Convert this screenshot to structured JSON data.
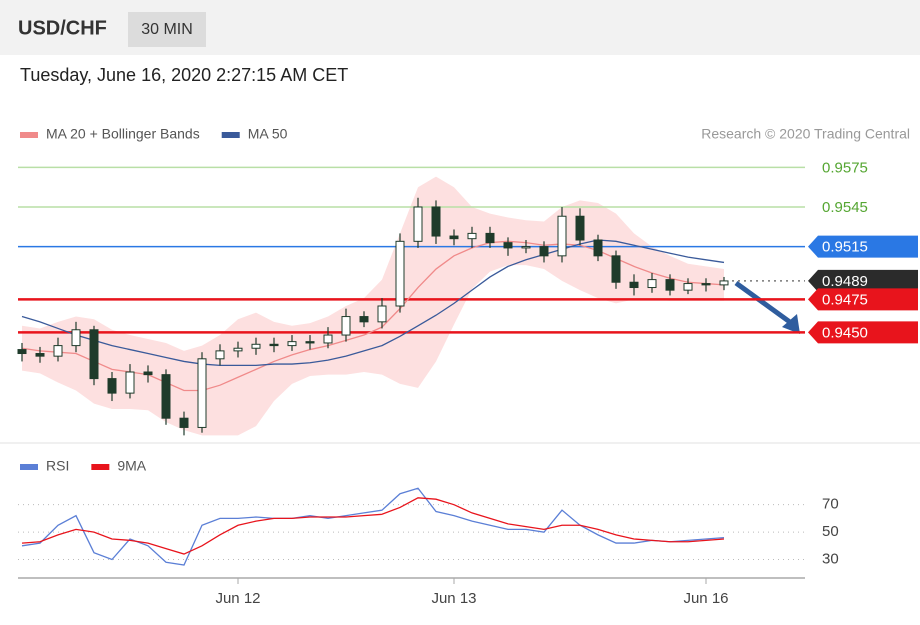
{
  "header": {
    "symbol": "USD/CHF",
    "timeframe": "30 MIN",
    "timestamp": "Tuesday, June 16, 2020 2:27:15 AM CET",
    "credit": "Research © 2020 Trading Central"
  },
  "chart_data": [
    {
      "type": "candlestick",
      "ylim": [
        0.937,
        0.959
      ],
      "candle_colors": {
        "up": "#ffffff",
        "down": "#1f3b2b",
        "outline": "#1f3b2b"
      },
      "open": [
        0.9437,
        0.9434,
        0.9432,
        0.944,
        0.9452,
        0.9415,
        0.9404,
        0.942,
        0.9418,
        0.9385,
        0.9378,
        0.943,
        0.9436,
        0.9438,
        0.9441,
        0.944,
        0.9443,
        0.9442,
        0.9448,
        0.9462,
        0.9458,
        0.947,
        0.9519,
        0.9545,
        0.9523,
        0.9521,
        0.9525,
        0.9518,
        0.9514,
        0.9515,
        0.9508,
        0.9538,
        0.952,
        0.9508,
        0.9488,
        0.9484,
        0.949,
        0.9482,
        0.9487,
        0.9486
      ],
      "high": [
        0.9442,
        0.9439,
        0.9446,
        0.9458,
        0.9455,
        0.942,
        0.9426,
        0.9425,
        0.9422,
        0.939,
        0.9435,
        0.9441,
        0.9443,
        0.9446,
        0.9446,
        0.9448,
        0.9448,
        0.9454,
        0.9468,
        0.9466,
        0.9476,
        0.9525,
        0.9552,
        0.955,
        0.9528,
        0.953,
        0.953,
        0.9522,
        0.952,
        0.9519,
        0.9545,
        0.9544,
        0.9524,
        0.9512,
        0.9494,
        0.9495,
        0.9494,
        0.9491,
        0.9491,
        0.9492
      ],
      "low": [
        0.9428,
        0.9427,
        0.9428,
        0.9435,
        0.941,
        0.9398,
        0.94,
        0.9412,
        0.938,
        0.9372,
        0.9374,
        0.9425,
        0.9431,
        0.9433,
        0.9435,
        0.9436,
        0.9437,
        0.9438,
        0.9443,
        0.9454,
        0.9453,
        0.9465,
        0.9514,
        0.9517,
        0.9516,
        0.9514,
        0.9514,
        0.9508,
        0.951,
        0.9503,
        0.9503,
        0.9516,
        0.9504,
        0.9483,
        0.9478,
        0.948,
        0.9478,
        0.9479,
        0.9481,
        0.9482
      ],
      "close": [
        0.9434,
        0.9432,
        0.944,
        0.9452,
        0.9415,
        0.9404,
        0.942,
        0.9418,
        0.9385,
        0.9378,
        0.943,
        0.9436,
        0.9438,
        0.9441,
        0.944,
        0.9443,
        0.9442,
        0.9448,
        0.9462,
        0.9458,
        0.947,
        0.9519,
        0.9545,
        0.9523,
        0.9521,
        0.9525,
        0.9518,
        0.9514,
        0.9515,
        0.9508,
        0.9538,
        0.952,
        0.9508,
        0.9488,
        0.9484,
        0.949,
        0.9482,
        0.9487,
        0.9486,
        0.9489
      ],
      "bands": {
        "color": "#fde0e0",
        "upper": [
          0.9455,
          0.9453,
          0.9458,
          0.9462,
          0.946,
          0.9452,
          0.9448,
          0.9445,
          0.9442,
          0.9436,
          0.944,
          0.9448,
          0.946,
          0.9465,
          0.9458,
          0.9455,
          0.9457,
          0.9462,
          0.947,
          0.9476,
          0.949,
          0.9525,
          0.956,
          0.9568,
          0.956,
          0.9545,
          0.954,
          0.9537,
          0.9535,
          0.9534,
          0.9545,
          0.955,
          0.9548,
          0.954,
          0.9525,
          0.9515,
          0.9508,
          0.9502,
          0.95,
          0.9498
        ],
        "lower": [
          0.9421,
          0.9419,
          0.9412,
          0.9406,
          0.9396,
          0.9392,
          0.9392,
          0.9391,
          0.9382,
          0.9376,
          0.9372,
          0.9372,
          0.9372,
          0.9379,
          0.9398,
          0.9411,
          0.9417,
          0.9418,
          0.9418,
          0.942,
          0.9418,
          0.9411,
          0.9408,
          0.9428,
          0.9456,
          0.9483,
          0.9496,
          0.9501,
          0.9501,
          0.9498,
          0.9489,
          0.9482,
          0.9476,
          0.9472,
          0.9475,
          0.9475,
          0.9474,
          0.9474,
          0.9474,
          0.9474
        ]
      },
      "series": [
        {
          "name": "MA 20 + Bollinger Bands",
          "color": "#f08a8a",
          "values": [
            0.9438,
            0.9436,
            0.9435,
            0.9434,
            0.9428,
            0.9422,
            0.942,
            0.9418,
            0.9412,
            0.9406,
            0.9406,
            0.941,
            0.9416,
            0.9422,
            0.9428,
            0.9433,
            0.9437,
            0.944,
            0.9444,
            0.9448,
            0.9454,
            0.9468,
            0.9484,
            0.9498,
            0.9508,
            0.9514,
            0.9518,
            0.9519,
            0.9518,
            0.9516,
            0.9517,
            0.9516,
            0.9512,
            0.9506,
            0.95,
            0.9495,
            0.9491,
            0.9488,
            0.9487,
            0.9486
          ]
        },
        {
          "name": "MA 50",
          "color": "#3a5a9a",
          "values": [
            0.9462,
            0.9458,
            0.9453,
            0.9448,
            0.9444,
            0.944,
            0.9437,
            0.9434,
            0.9431,
            0.9428,
            0.9426,
            0.9425,
            0.9425,
            0.9425,
            0.9426,
            0.9426,
            0.9427,
            0.9429,
            0.9432,
            0.9436,
            0.944,
            0.9447,
            0.9455,
            0.9463,
            0.9472,
            0.9482,
            0.9492,
            0.95,
            0.9505,
            0.9509,
            0.9513,
            0.9517,
            0.952,
            0.9519,
            0.9516,
            0.9513,
            0.951,
            0.9507,
            0.9505,
            0.9503
          ]
        }
      ],
      "levels": [
        {
          "value": 0.9575,
          "label": "0.9575",
          "color": "#55a632",
          "line_color": "#b9dfa6",
          "badge": false,
          "dotted": false
        },
        {
          "value": 0.9545,
          "label": "0.9545",
          "color": "#55a632",
          "line_color": "#b9dfa6",
          "badge": false,
          "dotted": false
        },
        {
          "value": 0.9515,
          "label": "0.9515",
          "color": "#2a78e4",
          "line_color": "#2a78e4",
          "badge": true,
          "dotted": false
        },
        {
          "value": 0.9489,
          "label": "0.9489",
          "color": "#2b2b2b",
          "line_color": "#777777",
          "badge": true,
          "dotted": true
        },
        {
          "value": 0.9475,
          "label": "0.9475",
          "color": "#e8141c",
          "line_color": "#e8141c",
          "badge": true,
          "dotted": false
        },
        {
          "value": 0.945,
          "label": "0.9450",
          "color": "#e8141c",
          "line_color": "#e8141c",
          "badge": true,
          "dotted": false
        }
      ]
    },
    {
      "type": "line",
      "categories": [
        null,
        null,
        null,
        null,
        null,
        null,
        null,
        null,
        null,
        null,
        null,
        null,
        "Jun 12",
        null,
        null,
        null,
        null,
        null,
        null,
        null,
        null,
        null,
        null,
        null,
        "Jun 13",
        null,
        null,
        null,
        null,
        null,
        null,
        null,
        null,
        null,
        null,
        null,
        null,
        null,
        "Jun 16",
        null
      ],
      "ylim": [
        18,
        88
      ],
      "yticks": [
        70,
        50,
        30
      ],
      "grid": true,
      "series": [
        {
          "name": "RSI",
          "color": "#5b7fd6",
          "values": [
            40,
            42,
            55,
            62,
            35,
            30,
            45,
            40,
            28,
            26,
            55,
            60,
            60,
            61,
            60,
            60,
            62,
            60,
            62,
            64,
            66,
            78,
            82,
            65,
            62,
            58,
            55,
            52,
            52,
            50,
            66,
            55,
            48,
            42,
            42,
            44,
            43,
            44,
            45,
            46
          ]
        },
        {
          "name": "9MA",
          "color": "#e8141c",
          "values": [
            42,
            43,
            48,
            52,
            50,
            45,
            44,
            42,
            38,
            34,
            40,
            48,
            55,
            58,
            60,
            60,
            61,
            61,
            61,
            62,
            63,
            68,
            75,
            74,
            70,
            64,
            60,
            56,
            54,
            52,
            55,
            55,
            52,
            48,
            45,
            44,
            43,
            43,
            44,
            45
          ]
        }
      ]
    }
  ]
}
